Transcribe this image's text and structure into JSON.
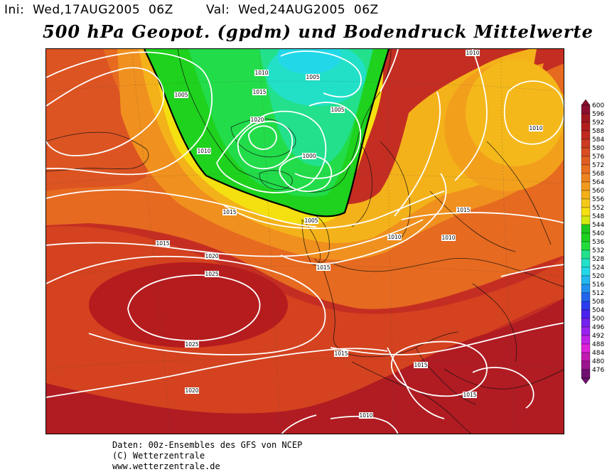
{
  "header": {
    "init": "Ini:  Wed,17AUG2005  06Z",
    "valid": "Val:  Wed,24AUG2005  06Z"
  },
  "title": "500 hPa Geopot. (gpdm) und Bodendruck Mittelwerte",
  "isobars": [
    {
      "label": "1010"
    },
    {
      "label": "1005"
    },
    {
      "label": "1015"
    },
    {
      "label": "1020"
    },
    {
      "label": "1010"
    },
    {
      "label": "1005"
    },
    {
      "label": "1005"
    },
    {
      "label": "1000"
    },
    {
      "label": "1010"
    },
    {
      "label": "1010"
    },
    {
      "label": "1010"
    },
    {
      "label": "1015"
    },
    {
      "label": "1015"
    },
    {
      "label": "1005"
    },
    {
      "label": "1010"
    },
    {
      "label": "1015"
    },
    {
      "label": "1020"
    },
    {
      "label": "1025"
    },
    {
      "label": "1015"
    },
    {
      "label": "1025"
    },
    {
      "label": "1015"
    },
    {
      "label": "1015"
    },
    {
      "label": "1020"
    },
    {
      "label": "1015"
    },
    {
      "label": "1010"
    }
  ],
  "colorbar": {
    "labels": [
      "600",
      "596",
      "592",
      "588",
      "584",
      "580",
      "576",
      "572",
      "568",
      "564",
      "560",
      "556",
      "552",
      "548",
      "544",
      "540",
      "536",
      "532",
      "528",
      "524",
      "520",
      "516",
      "512",
      "508",
      "504",
      "500",
      "496",
      "492",
      "488",
      "484",
      "480",
      "476"
    ],
    "colors": [
      "#8b1030",
      "#a01820",
      "#b21e1e",
      "#c02a20",
      "#cc3a22",
      "#d84c22",
      "#e05e22",
      "#e87020",
      "#ee8420",
      "#f29a1e",
      "#f4b01a",
      "#f4c818",
      "#f6e010",
      "#d2e810",
      "#1ec81e",
      "#1ed21e",
      "#22dc3c",
      "#22e08c",
      "#22e0c8",
      "#22d8e8",
      "#22b8ee",
      "#2290ee",
      "#2266ee",
      "#2a3cee",
      "#4a22ee",
      "#7422ee",
      "#9a22ee",
      "#c022e8",
      "#e022d8",
      "#c01ab0",
      "#9a1490",
      "#701070"
    ]
  },
  "footer": {
    "line1": "Daten: 00z-Ensembles des GFS von NCEP",
    "line2": "(C) Wetterzentrale",
    "line3": "www.wetterzentrale.de"
  }
}
